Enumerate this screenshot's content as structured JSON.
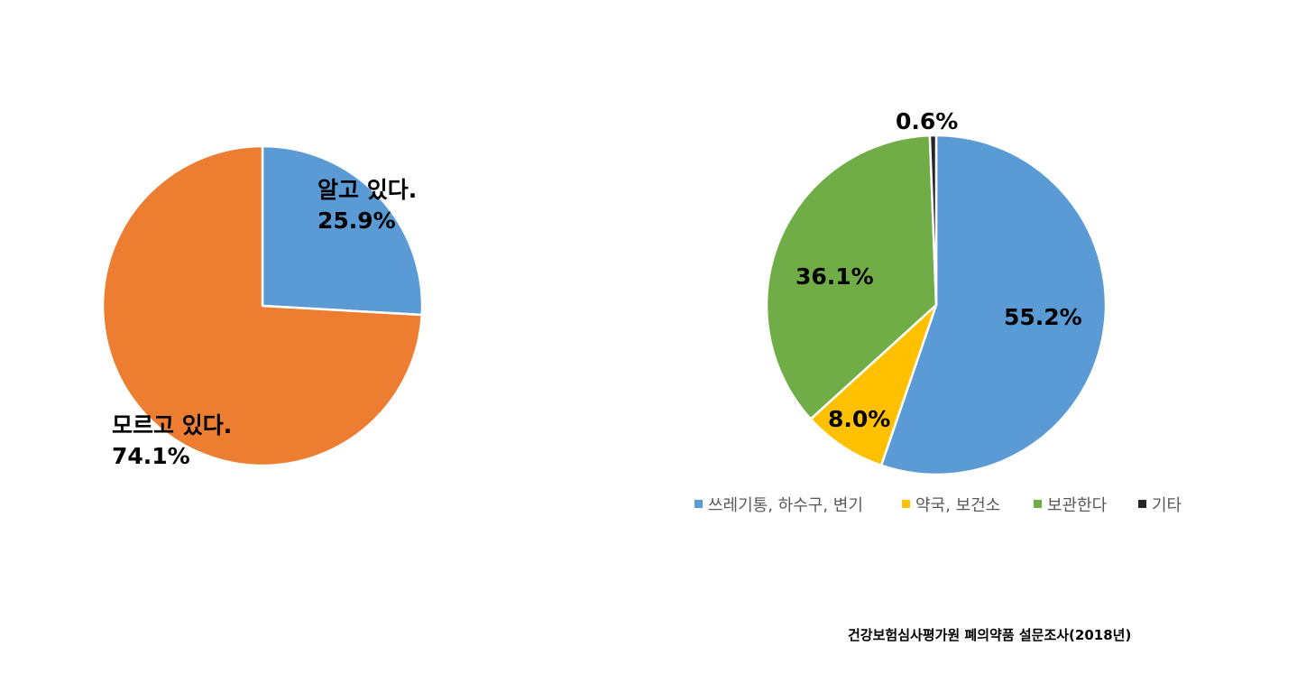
{
  "chart_data": [
    {
      "type": "pie",
      "slices": [
        {
          "label": "알고 있다.",
          "value": 25.9,
          "value_label": "25.9%",
          "color": "#5B9BD5"
        },
        {
          "label": "모르고 있다.",
          "value": 74.1,
          "value_label": "74.1%",
          "color": "#ED7D31"
        }
      ],
      "legend": "none"
    },
    {
      "type": "pie",
      "slices": [
        {
          "label": "쓰레기통, 하수구, 변기",
          "value": 55.2,
          "value_label": "55.2%",
          "color": "#5B9BD5"
        },
        {
          "label": "약국, 보건소",
          "value": 8.0,
          "value_label": "8.0%",
          "color": "#FFC000"
        },
        {
          "label": "보관한다",
          "value": 36.1,
          "value_label": "36.1%",
          "color": "#70AD47"
        },
        {
          "label": "기타",
          "value": 0.6,
          "value_label": "0.6%",
          "color": "#262626"
        }
      ],
      "legend": "bottom"
    }
  ],
  "source": "건강보험심사평가원 폐의약품 설문조사(2018년)"
}
